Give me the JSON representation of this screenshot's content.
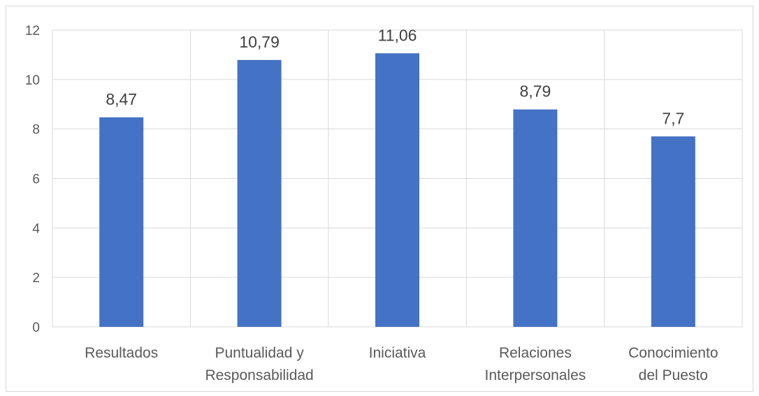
{
  "chart_data": {
    "type": "bar",
    "categories": [
      [
        "Resultados"
      ],
      [
        "Puntualidad y",
        "Responsabilidad"
      ],
      [
        "Iniciativa"
      ],
      [
        "Relaciones",
        "Interpersonales"
      ],
      [
        "Conocimiento",
        "del Puesto"
      ]
    ],
    "values": [
      8.47,
      10.79,
      11.06,
      8.79,
      7.7
    ],
    "data_labels": [
      "8,47",
      "10,79",
      "11,06",
      "8,79",
      "7,7"
    ],
    "y_ticks": [
      "0",
      "2",
      "4",
      "6",
      "8",
      "10",
      "12"
    ],
    "ylim": [
      0,
      12
    ],
    "grid": true,
    "vertical_category_dividers": true,
    "bar_color": "#4472C4",
    "grid_color": "#d9d9d9"
  }
}
